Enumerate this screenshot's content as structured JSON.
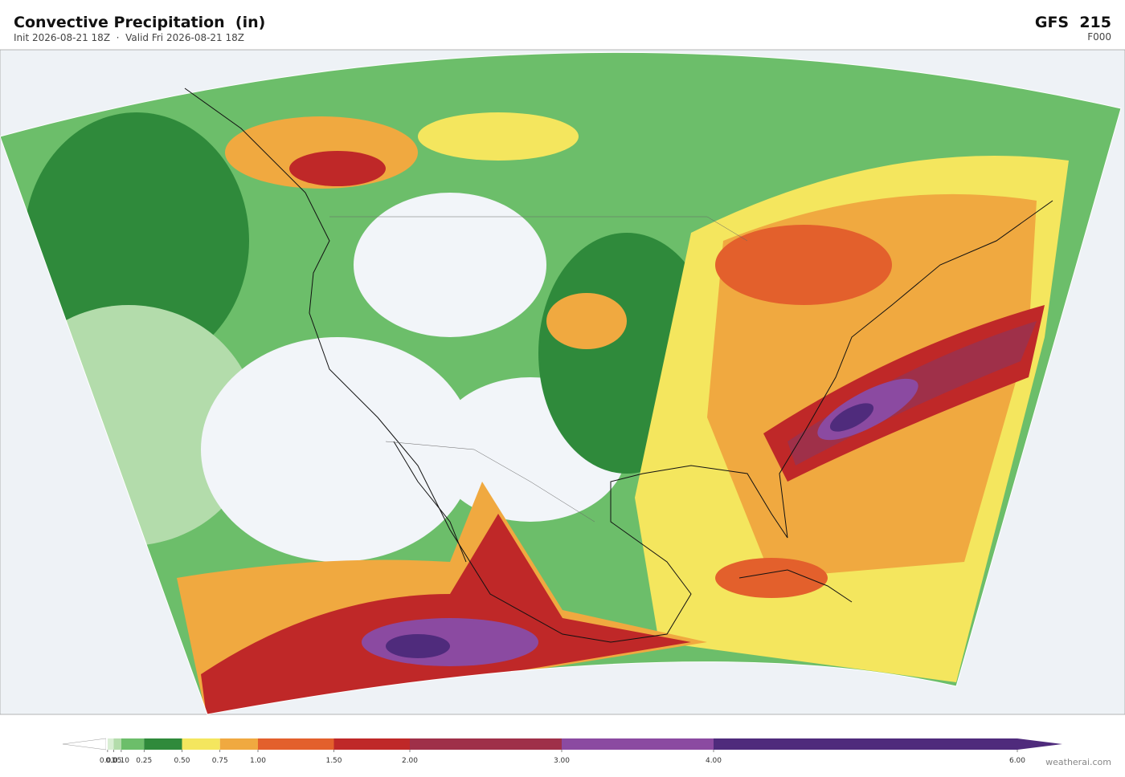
{
  "header": {
    "title": "Convective Precipitation  (in)",
    "subtitle": "Init 2026-08-21 18Z  ·  Valid Fri 2026-08-21 18Z",
    "model": "GFS  215",
    "forecast_hour": "F000"
  },
  "colorbar": {
    "ticks": [
      {
        "value": 0.01,
        "label": "0.01"
      },
      {
        "value": 0.05,
        "label": "0.05"
      },
      {
        "value": 0.1,
        "label": "0.10"
      },
      {
        "value": 0.25,
        "label": "0.25"
      },
      {
        "value": 0.5,
        "label": "0.50"
      },
      {
        "value": 0.75,
        "label": "0.75"
      },
      {
        "value": 1,
        "label": "1.00"
      },
      {
        "value": 1.5,
        "label": "1.50"
      },
      {
        "value": 2,
        "label": "2.00"
      },
      {
        "value": 3,
        "label": "3.00"
      },
      {
        "value": 4,
        "label": "4.00"
      },
      {
        "value": 6,
        "label": "6.00"
      }
    ],
    "colors": [
      "#d9eed4",
      "#b3dcab",
      "#6cbe6a",
      "#2f8a3b",
      "#f4e65e",
      "#f0a940",
      "#e3602c",
      "#bf2828",
      "#9f3049",
      "#8b4aa1",
      "#4f2b7c"
    ]
  },
  "credit": "weatherai.com"
}
